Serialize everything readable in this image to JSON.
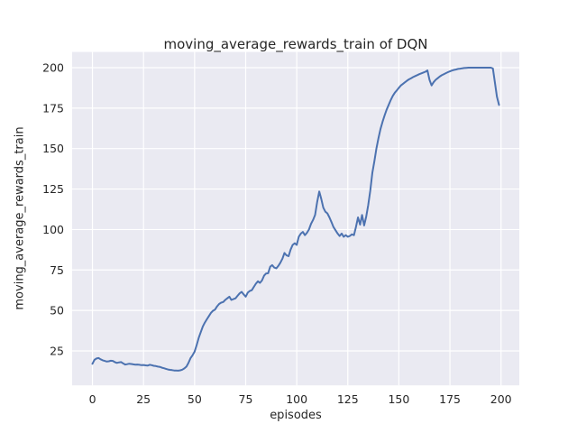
{
  "chart_data": {
    "type": "line",
    "title": "moving_average_rewards_train of DQN",
    "xlabel": "episodes",
    "ylabel": "moving_average_rewards_train",
    "grid": true,
    "legend": "none",
    "xlim": [
      -9.95,
      208.95
    ],
    "ylim": [
      3.7,
      209.7
    ],
    "xticks": [
      0,
      25,
      50,
      75,
      100,
      125,
      150,
      175,
      200
    ],
    "yticks": [
      25,
      50,
      75,
      100,
      125,
      150,
      175,
      200
    ],
    "style": {
      "line_color": "#4C72B0",
      "axes_bg": "#EAEAF2",
      "grid_color": "#FFFFFF",
      "text_color": "#262626",
      "fig_bg": "#FFFFFF"
    },
    "x_start": 0,
    "series": [
      {
        "name": "moving_average_rewards_train",
        "color": "#4C72B0",
        "values": [
          17.0,
          19.5,
          20.3,
          20.6,
          19.8,
          19.2,
          18.8,
          18.4,
          18.6,
          18.9,
          18.8,
          18.0,
          17.6,
          17.9,
          18.1,
          17.3,
          16.6,
          16.8,
          17.1,
          16.9,
          16.7,
          16.5,
          16.6,
          16.4,
          16.2,
          16.3,
          16.1,
          15.9,
          16.4,
          16.2,
          15.8,
          15.6,
          15.3,
          15.1,
          14.6,
          14.3,
          13.9,
          13.5,
          13.3,
          13.1,
          12.9,
          12.9,
          12.8,
          13.0,
          13.4,
          14.2,
          15.3,
          17.5,
          20.5,
          22.3,
          24.5,
          28.5,
          33.0,
          36.5,
          40.0,
          42.5,
          44.5,
          46.5,
          48.5,
          49.8,
          50.5,
          52.5,
          54.0,
          54.8,
          55.2,
          56.5,
          57.5,
          58.5,
          56.5,
          57.0,
          57.5,
          59.0,
          60.5,
          61.5,
          60.0,
          58.5,
          61.0,
          62.0,
          62.5,
          64.5,
          66.5,
          68.0,
          67.0,
          68.5,
          71.5,
          72.8,
          73.0,
          77.0,
          78.0,
          76.5,
          76.0,
          77.5,
          79.5,
          82.0,
          85.5,
          84.0,
          83.5,
          87.5,
          90.5,
          91.5,
          90.5,
          95.5,
          97.5,
          98.5,
          96.5,
          98.0,
          100.0,
          103.5,
          106.0,
          109.0,
          117.0,
          123.5,
          119.0,
          113.5,
          111.0,
          110.0,
          107.5,
          104.5,
          101.5,
          99.5,
          97.5,
          96.0,
          97.5,
          95.5,
          96.5,
          95.5,
          96.0,
          97.0,
          96.5,
          101.5,
          107.5,
          103.0,
          109.0,
          102.5,
          108.0,
          115.0,
          124.0,
          135.0,
          142.0,
          150.0,
          156.5,
          162.0,
          166.5,
          170.5,
          174.0,
          177.0,
          180.0,
          182.5,
          184.5,
          186.0,
          187.5,
          189.0,
          190.0,
          191.0,
          192.0,
          192.8,
          193.5,
          194.2,
          194.8,
          195.4,
          196.0,
          196.5,
          197.0,
          197.5,
          198.3,
          192.5,
          189.0,
          191.0,
          192.5,
          193.5,
          194.5,
          195.3,
          196.0,
          196.6,
          197.2,
          197.7,
          198.2,
          198.6,
          198.9,
          199.2,
          199.4,
          199.6,
          199.8,
          199.9,
          200.0,
          200.0,
          200.0,
          200.0,
          200.0,
          200.0,
          200.0,
          200.0,
          200.0,
          200.0,
          200.0,
          200.0,
          199.5,
          191.0,
          182.0,
          177.0
        ]
      }
    ]
  }
}
